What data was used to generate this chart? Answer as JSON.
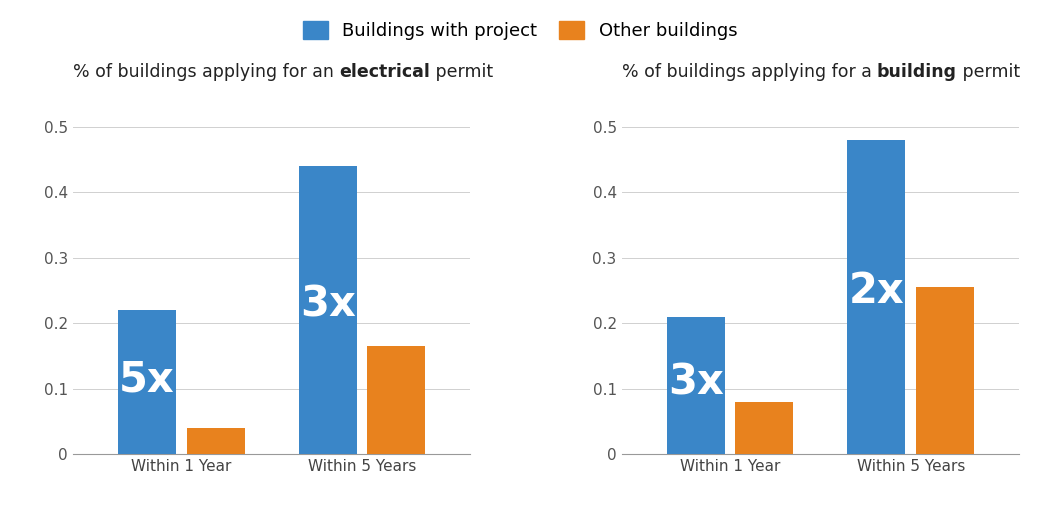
{
  "left_chart": {
    "title_parts": [
      "% of buildings applying for an ",
      "electrical",
      " permit"
    ],
    "categories": [
      "Within 1 Year",
      "Within 5 Years"
    ],
    "with_project": [
      0.22,
      0.44
    ],
    "other": [
      0.04,
      0.165
    ],
    "annotations": [
      {
        "text": "5x",
        "x": 0
      },
      {
        "text": "3x",
        "x": 1
      }
    ]
  },
  "right_chart": {
    "title_parts": [
      "% of buildings applying for a ",
      "building",
      " permit"
    ],
    "categories": [
      "Within 1 Year",
      "Within 5 Years"
    ],
    "with_project": [
      0.21,
      0.48
    ],
    "other": [
      0.08,
      0.255
    ],
    "annotations": [
      {
        "text": "3x",
        "x": 0
      },
      {
        "text": "2x",
        "x": 1
      }
    ]
  },
  "legend": {
    "with_project_label": "Buildings with project",
    "other_label": "Other buildings"
  },
  "colors": {
    "with_project": "#3a86c8",
    "other": "#e8821e",
    "annotation_text": "#ffffff",
    "title_text": "#222222"
  },
  "ylim": [
    0,
    0.55
  ],
  "yticks": [
    0,
    0.1,
    0.2,
    0.3,
    0.4,
    0.5
  ],
  "bar_width": 0.32,
  "bar_gap": 0.06,
  "annotation_fontsize": 30,
  "title_fontsize": 12.5,
  "tick_fontsize": 11,
  "legend_fontsize": 13
}
